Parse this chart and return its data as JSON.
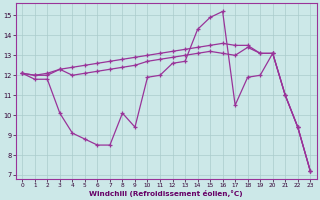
{
  "xlabel": "Windchill (Refroidissement éolien,°C)",
  "xlim": [
    -0.5,
    23.5
  ],
  "ylim": [
    6.8,
    15.6
  ],
  "xticks": [
    0,
    1,
    2,
    3,
    4,
    5,
    6,
    7,
    8,
    9,
    10,
    11,
    12,
    13,
    14,
    15,
    16,
    17,
    18,
    19,
    20,
    21,
    22,
    23
  ],
  "yticks": [
    7,
    8,
    9,
    10,
    11,
    12,
    13,
    14,
    15
  ],
  "bg_color": "#cce8e8",
  "grid_color": "#aacccc",
  "line_color": "#993399",
  "series": [
    [
      12.1,
      11.8,
      11.8,
      10.1,
      9.1,
      8.8,
      8.5,
      8.5,
      10.1,
      9.4,
      11.9,
      12.0,
      12.6,
      12.7,
      14.3,
      14.9,
      15.2,
      10.5,
      11.9,
      12.0,
      13.1,
      11.0,
      9.4,
      7.2
    ],
    [
      12.1,
      12.0,
      12.0,
      12.3,
      12.0,
      12.1,
      12.2,
      12.3,
      12.4,
      12.5,
      12.7,
      12.8,
      12.9,
      13.0,
      13.1,
      13.2,
      13.1,
      13.0,
      13.4,
      13.1,
      13.1,
      11.0,
      9.4,
      7.2
    ],
    [
      12.1,
      12.0,
      12.1,
      12.3,
      12.4,
      12.5,
      12.6,
      12.7,
      12.8,
      12.9,
      13.0,
      13.1,
      13.2,
      13.3,
      13.4,
      13.5,
      13.6,
      13.5,
      13.5,
      13.1,
      13.1,
      11.0,
      9.4,
      7.2
    ]
  ]
}
